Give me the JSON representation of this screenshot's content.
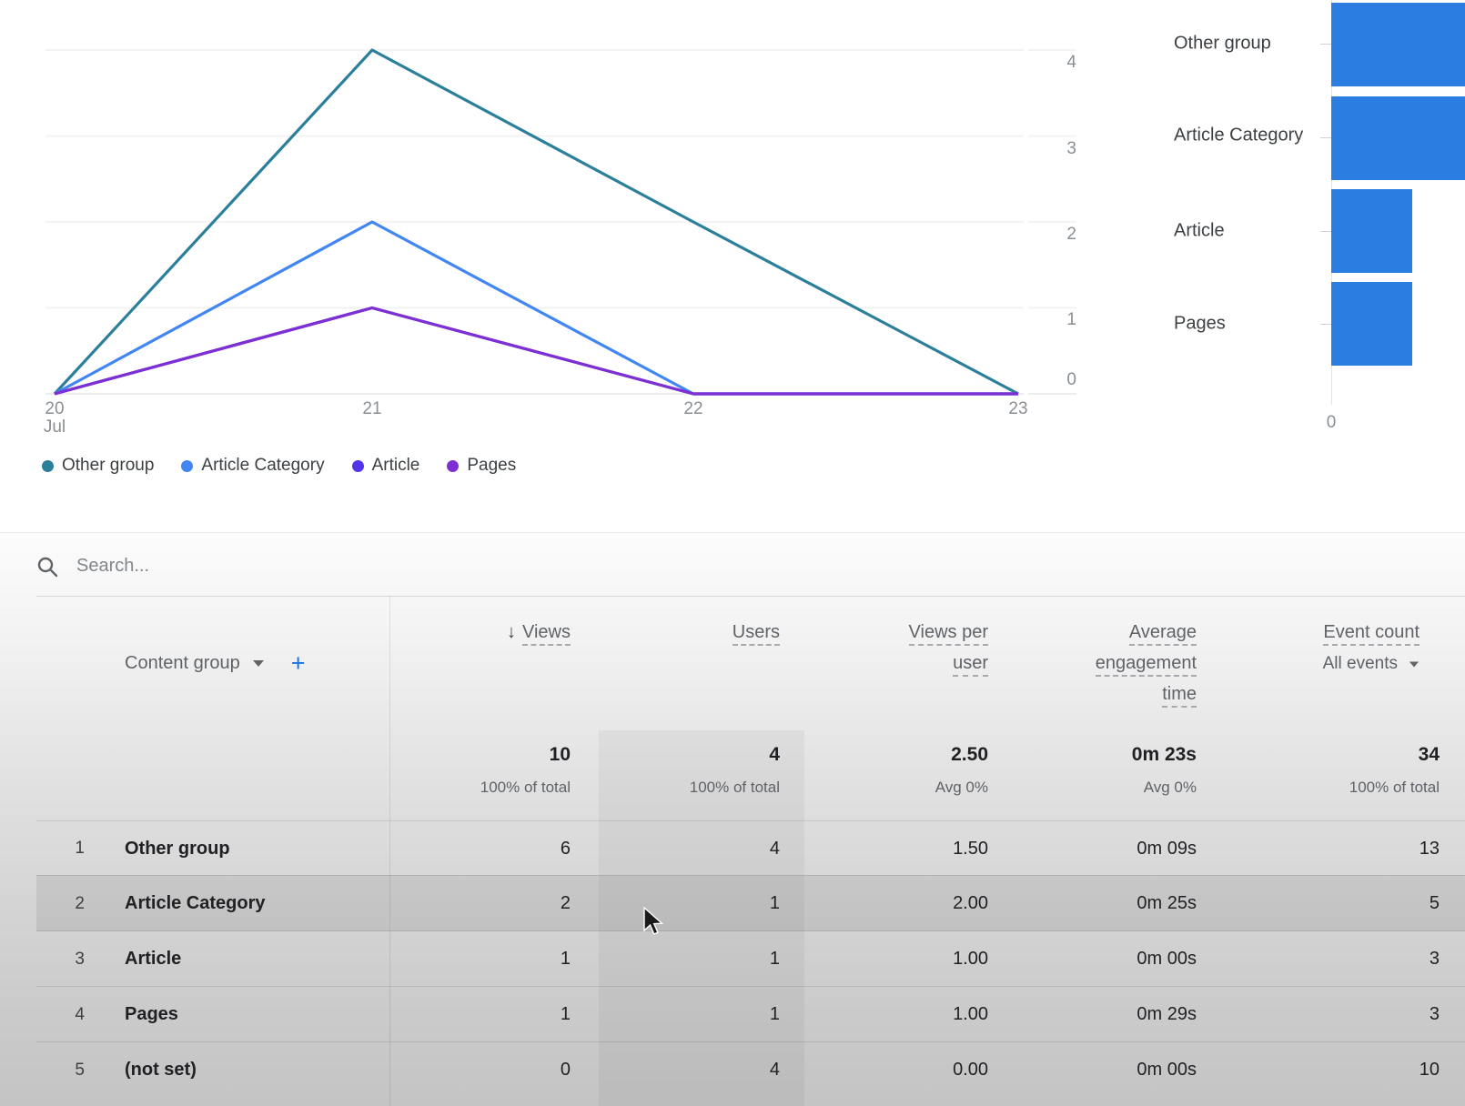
{
  "line_chart": {
    "x_labels": [
      "20",
      "21",
      "22",
      "23"
    ],
    "x_sublabel": "Jul",
    "y_ticks": [
      "4",
      "3",
      "2",
      "1",
      "0"
    ]
  },
  "bar_chart": {
    "zero_label": "0"
  },
  "search": {
    "placeholder": "Search..."
  },
  "table": {
    "dimension": {
      "label": "Content group"
    },
    "metrics": {
      "views": "Views",
      "users": "Users",
      "vpu_lines": [
        "Views per",
        "user"
      ],
      "aet_lines": [
        "Average",
        "engagement",
        "time"
      ],
      "events": "Event count",
      "events_filter": "All events"
    },
    "totals": {
      "views": "10",
      "views_sub": "100% of total",
      "users": "4",
      "users_sub": "100% of total",
      "vpu": "2.50",
      "vpu_sub": "Avg 0%",
      "aet": "0m 23s",
      "aet_sub": "Avg 0%",
      "events": "34",
      "events_sub": "100% of total"
    },
    "rows": [
      {
        "num": "1",
        "label": "Other group",
        "views": "6",
        "users": "4",
        "vpu": "1.50",
        "aet": "0m 09s",
        "events": "13"
      },
      {
        "num": "2",
        "label": "Article Category",
        "views": "2",
        "users": "1",
        "vpu": "2.00",
        "aet": "0m 25s",
        "events": "5"
      },
      {
        "num": "3",
        "label": "Article",
        "views": "1",
        "users": "1",
        "vpu": "1.00",
        "aet": "0m 00s",
        "events": "3"
      },
      {
        "num": "4",
        "label": "Pages",
        "views": "1",
        "users": "1",
        "vpu": "1.00",
        "aet": "0m 29s",
        "events": "3"
      },
      {
        "num": "5",
        "label": "(not set)",
        "views": "0",
        "users": "4",
        "vpu": "0.00",
        "aet": "0m 00s",
        "events": "10"
      }
    ]
  },
  "chart_data": [
    {
      "type": "line",
      "x": [
        "Jul 20",
        "Jul 21",
        "Jul 22",
        "Jul 23"
      ],
      "series": [
        {
          "name": "Other group",
          "color": "#2c7f9b",
          "values": [
            0,
            4,
            2,
            0
          ]
        },
        {
          "name": "Article Category",
          "color": "#4285f4",
          "values": [
            0,
            2,
            0,
            0
          ]
        },
        {
          "name": "Article",
          "color": "#5433e8",
          "values": [
            0,
            1,
            0,
            0
          ]
        },
        {
          "name": "Pages",
          "color": "#7d2fd3",
          "values": [
            0,
            1,
            0,
            0
          ]
        }
      ],
      "ylim": [
        0,
        4
      ],
      "y_ticks": [
        0,
        1,
        2,
        3,
        4
      ],
      "grid": true,
      "legend_position": "bottom"
    },
    {
      "type": "bar",
      "orientation": "horizontal",
      "categories": [
        "Other group",
        "Article Category",
        "Article",
        "Pages"
      ],
      "values": [
        6,
        2,
        1,
        1
      ],
      "color": "#2b7de2",
      "xlim_visible_clip": true,
      "x_axis_zero_label": "0"
    }
  ]
}
